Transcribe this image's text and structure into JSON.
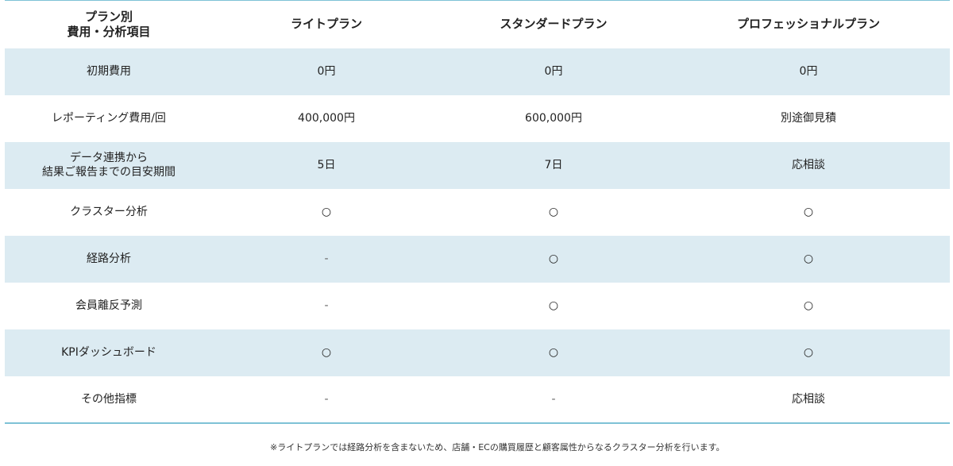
{
  "header": {
    "category": "プラン別\n費用・分析項目",
    "plans": [
      "ライトプラン",
      "スタンダードプラン",
      "プロフェッショナルプラン"
    ]
  },
  "rows": [
    {
      "label": "初期費用",
      "values": [
        "0円",
        "0円",
        "0円"
      ]
    },
    {
      "label": "レポーティング費用/回",
      "values": [
        "400,000円",
        "600,000円",
        "別途御見積"
      ]
    },
    {
      "label": "データ連携から\n結果ご報告までの目安期間",
      "values": [
        "5日",
        "7日",
        "応相談"
      ]
    },
    {
      "label": "クラスター分析",
      "values": [
        "○",
        "○",
        "○"
      ]
    },
    {
      "label": "経路分析",
      "values": [
        "-",
        "○",
        "○"
      ]
    },
    {
      "label": "会員離反予測",
      "values": [
        "-",
        "○",
        "○"
      ]
    },
    {
      "label": "KPIダッシュボード",
      "values": [
        "○",
        "○",
        "○"
      ]
    },
    {
      "label": "その他指標",
      "values": [
        "-",
        "-",
        "応相談"
      ]
    }
  ],
  "footnote": "※ライトプランでは経路分析を含まないため、店舗・ECの購買履歴と顧客属性からなるクラスター分析を行います。",
  "colors": {
    "shaded_row": "#dcebf2",
    "rule": "#7ec2d6"
  }
}
